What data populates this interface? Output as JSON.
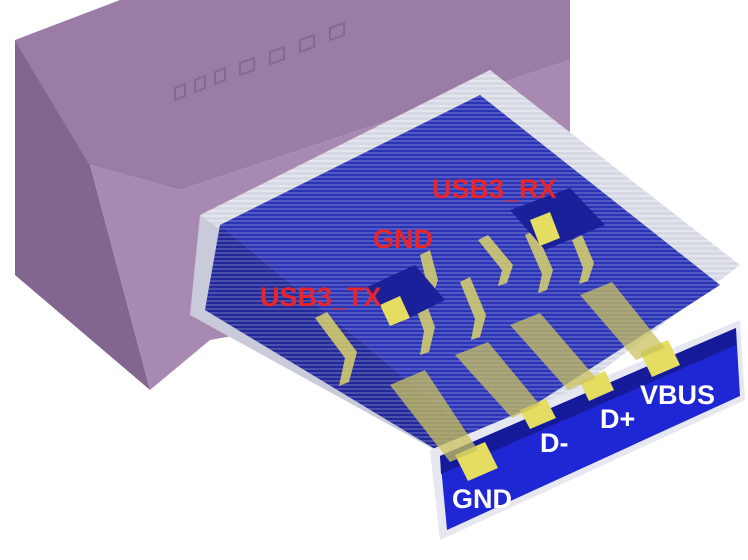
{
  "diagram": {
    "colors": {
      "housing": "#a283ad",
      "housing_top": "#8c6f97",
      "housing_side": "#7c5f87",
      "shell": "#d7d9e6",
      "insulator": "#2a32b8",
      "insulator_dark": "#1a1f8a",
      "insulator_front": "#1e24d2",
      "contact": "#e4dd62",
      "contact_dark": "#b8ae3a",
      "label_red": "#e8252a",
      "label_white": "#ffffff"
    },
    "labels": {
      "usb3_rx": "USB3_RX",
      "gnd_top": "GND",
      "usb3_tx": "USB3_TX",
      "gnd_bottom": "GND",
      "d_minus": "D-",
      "d_plus": "D+",
      "vbus": "VBUS"
    }
  }
}
